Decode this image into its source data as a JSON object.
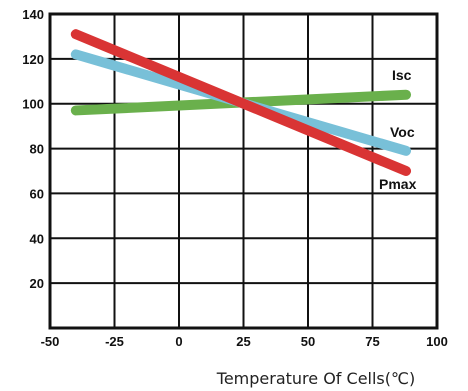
{
  "chart_data": {
    "type": "line",
    "title": "",
    "xlabel": "Temperature Of Cells(℃)",
    "ylabel": "",
    "xlim": [
      -50,
      100
    ],
    "ylim": [
      0,
      140
    ],
    "xticks": [
      -50,
      -25,
      0,
      25,
      50,
      75,
      100
    ],
    "yticks": [
      20,
      40,
      60,
      80,
      100,
      120,
      140
    ],
    "grid": true,
    "series": [
      {
        "name": "Isc",
        "color": "#6ab04c",
        "x": [
          -40,
          88
        ],
        "y": [
          97,
          104
        ]
      },
      {
        "name": "Voc",
        "color": "#78c0d8",
        "x": [
          -40,
          88
        ],
        "y": [
          122,
          79
        ]
      },
      {
        "name": "Pmax",
        "color": "#d93434",
        "x": [
          -40,
          88
        ],
        "y": [
          131,
          70
        ]
      }
    ]
  },
  "colors": {
    "frame": "#111111",
    "grid": "#111111",
    "background": "#ffffff"
  }
}
